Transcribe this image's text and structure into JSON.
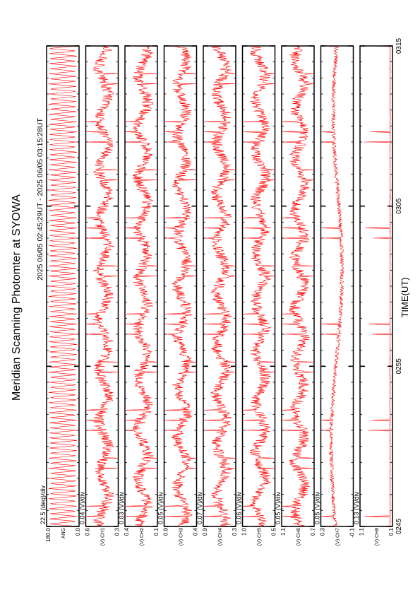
{
  "chart_data": {
    "type": "line",
    "title": "Meridian Scanning Photomter at SYOWA",
    "subtitle": "2025 06/05 02:45:29UT - 2025 06/05 03:15:28UT",
    "xlabel": "TIME(UT)",
    "x_ticks": [
      "0245",
      "0255",
      "0305",
      "0315"
    ],
    "series_color": "#ff0000",
    "panels": [
      {
        "id": "angle",
        "scale": "22.5 (deg)/div",
        "top_label": "180.0",
        "bottom_label": "0.0",
        "channel": "ANG",
        "unit": "",
        "ylim": [
          0,
          180
        ],
        "kind": "sweep"
      },
      {
        "id": "ch1",
        "scale": "0.04 (V)/div",
        "top_label": "0.6",
        "bottom_label": "0.3",
        "channel": "CH1",
        "unit": "(V)",
        "ylim": [
          0.3,
          0.6
        ],
        "kind": "spike"
      },
      {
        "id": "ch2",
        "scale": "0.03 (V)/div",
        "top_label": "0.4",
        "bottom_label": "0.1",
        "channel": "CH2",
        "unit": "(V)",
        "ylim": [
          0.1,
          0.4
        ],
        "kind": "spike"
      },
      {
        "id": "ch3",
        "scale": "0.05 (V)/div",
        "top_label": "0.9",
        "bottom_label": "0.4",
        "channel": "CH3",
        "unit": "(V)",
        "ylim": [
          0.4,
          0.9
        ],
        "kind": "spike"
      },
      {
        "id": "ch4",
        "scale": "0.07 (V)/div",
        "top_label": "0.9",
        "bottom_label": "0.3",
        "channel": "CH4",
        "unit": "(V)",
        "ylim": [
          0.3,
          0.9
        ],
        "kind": "spike"
      },
      {
        "id": "ch5",
        "scale": "0.06 (V)/div",
        "top_label": "1.0",
        "bottom_label": "0.5",
        "channel": "CH5",
        "unit": "(V)",
        "ylim": [
          0.5,
          1.0
        ],
        "kind": "spike"
      },
      {
        "id": "ch6",
        "scale": "0.05 (V)/div",
        "top_label": "1.1",
        "bottom_label": "0.7",
        "channel": "CH6",
        "unit": "(V)",
        "ylim": [
          0.7,
          1.1
        ],
        "kind": "spike"
      },
      {
        "id": "ch7",
        "scale": "0.05 (V)/div",
        "top_label": "0.3",
        "bottom_label": "-0.1",
        "channel": "CH7",
        "unit": "(V)",
        "ylim": [
          -0.1,
          0.3
        ],
        "kind": "slow"
      },
      {
        "id": "ch8",
        "scale": "0.13 (V)/div",
        "top_label": "1.1",
        "bottom_label": "0.1",
        "channel": "CH8",
        "unit": "(V)",
        "ylim": [
          0.1,
          1.1
        ],
        "kind": "sparse"
      }
    ]
  }
}
